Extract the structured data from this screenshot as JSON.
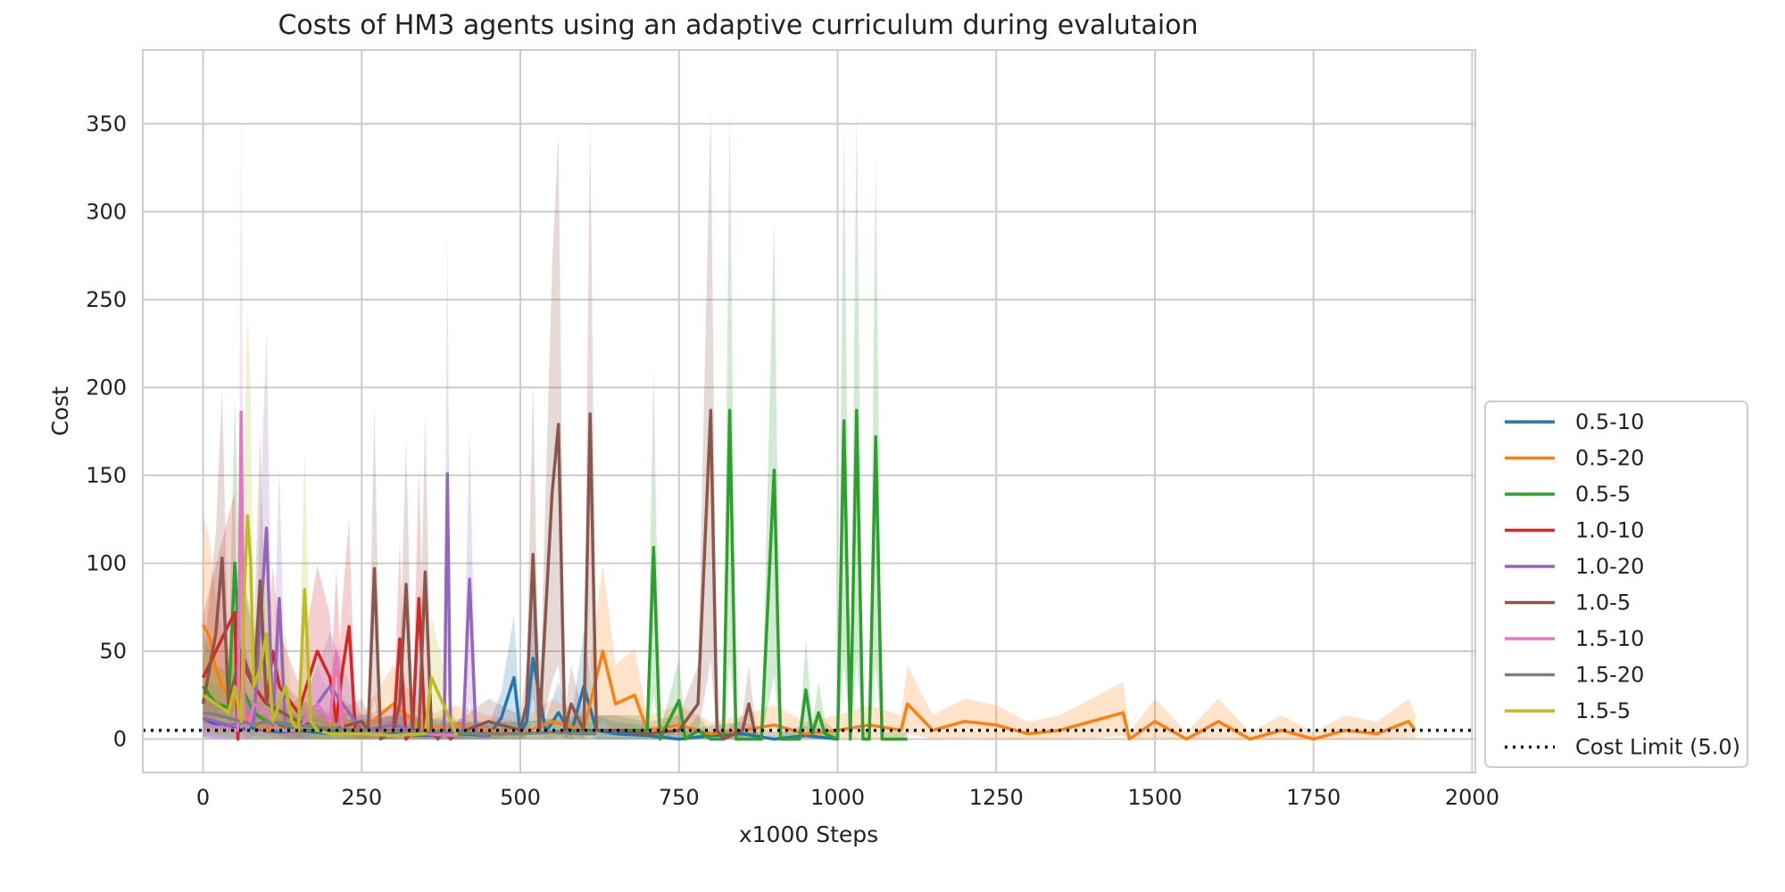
{
  "chart_data": {
    "type": "line",
    "title": "Costs of HM3 agents using an adaptive curriculum during evalutaion",
    "xlabel": "x1000 Steps",
    "ylabel": "Cost",
    "xlim": [
      -95,
      2005
    ],
    "ylim": [
      -19,
      392
    ],
    "xticks": [
      0,
      250,
      500,
      750,
      1000,
      1250,
      1500,
      1750,
      2000
    ],
    "yticks": [
      0,
      50,
      100,
      150,
      200,
      250,
      300,
      350
    ],
    "grid": true,
    "legend_position": "lower-right-outside",
    "reference_line": {
      "label": "Cost Limit (5.0)",
      "y": 5.0,
      "style": "dotted",
      "color": "#000000"
    },
    "series": [
      {
        "name": "0.5-10",
        "color": "#1f77b4",
        "x": [
          0,
          10,
          20,
          30,
          40,
          50,
          60,
          70,
          80,
          100,
          120,
          150,
          200,
          250,
          300,
          350,
          400,
          450,
          470,
          490,
          500,
          510,
          520,
          540,
          560,
          580,
          600,
          620,
          650,
          700,
          750,
          800,
          850,
          900,
          950,
          1000
        ],
        "y": [
          12,
          10,
          8,
          9,
          7,
          6,
          5,
          7,
          6,
          5,
          4,
          5,
          3,
          4,
          3,
          2,
          3,
          2,
          12,
          35,
          3,
          10,
          46,
          4,
          15,
          3,
          30,
          5,
          3,
          2,
          0,
          2,
          3,
          0,
          2,
          0
        ]
      },
      {
        "name": "0.5-20",
        "color": "#ff7f0e",
        "x": [
          0,
          10,
          20,
          30,
          40,
          50,
          60,
          80,
          100,
          150,
          200,
          210,
          220,
          250,
          300,
          350,
          400,
          450,
          500,
          550,
          600,
          630,
          650,
          680,
          700,
          750,
          800,
          850,
          900,
          950,
          1000,
          1050,
          1100,
          1110,
          1150,
          1200,
          1250,
          1300,
          1350,
          1400,
          1450,
          1460,
          1500,
          1550,
          1600,
          1650,
          1700,
          1750,
          1800,
          1850,
          1900,
          1910
        ],
        "y": [
          65,
          58,
          40,
          30,
          25,
          20,
          15,
          8,
          5,
          10,
          5,
          48,
          10,
          5,
          20,
          5,
          8,
          5,
          3,
          10,
          5,
          50,
          20,
          25,
          5,
          8,
          3,
          5,
          8,
          3,
          5,
          8,
          5,
          20,
          5,
          10,
          8,
          3,
          5,
          10,
          15,
          0,
          10,
          0,
          10,
          0,
          5,
          0,
          5,
          3,
          10,
          5
        ]
      },
      {
        "name": "0.5-5",
        "color": "#2ca02c",
        "x": [
          0,
          10,
          20,
          40,
          50,
          60,
          80,
          100,
          150,
          200,
          250,
          300,
          400,
          500,
          600,
          650,
          700,
          710,
          720,
          750,
          760,
          780,
          800,
          820,
          830,
          840,
          880,
          900,
          910,
          940,
          950,
          960,
          970,
          980,
          1000,
          1010,
          1020,
          1030,
          1040,
          1050,
          1060,
          1070,
          1110
        ],
        "y": [
          30,
          25,
          20,
          18,
          100,
          30,
          15,
          10,
          5,
          5,
          3,
          5,
          3,
          3,
          5,
          5,
          5,
          109,
          0,
          22,
          0,
          5,
          0,
          0,
          187,
          0,
          0,
          153,
          0,
          0,
          28,
          3,
          15,
          3,
          0,
          181,
          0,
          187,
          0,
          0,
          172,
          0,
          0
        ]
      },
      {
        "name": "1.0-10",
        "color": "#d62728",
        "x": [
          0,
          20,
          40,
          50,
          55,
          60,
          80,
          100,
          110,
          120,
          150,
          180,
          200,
          210,
          220,
          230,
          240,
          250,
          300,
          310,
          320,
          330,
          340,
          350
        ],
        "y": [
          35,
          50,
          65,
          72,
          0,
          45,
          30,
          20,
          50,
          30,
          15,
          50,
          35,
          10,
          40,
          64,
          5,
          3,
          5,
          57,
          0,
          5,
          80,
          3
        ]
      },
      {
        "name": "1.0-20",
        "color": "#9467bd",
        "x": [
          0,
          20,
          40,
          60,
          80,
          100,
          110,
          120,
          130,
          150,
          200,
          250,
          300,
          350,
          380,
          385,
          390,
          400,
          410,
          420,
          430,
          450
        ],
        "y": [
          12,
          10,
          8,
          9,
          10,
          120,
          8,
          80,
          5,
          5,
          30,
          5,
          8,
          3,
          5,
          151,
          3,
          3,
          5,
          91,
          3,
          2
        ]
      },
      {
        "name": "1.0-5",
        "color": "#8c564b",
        "x": [
          0,
          10,
          20,
          30,
          40,
          60,
          80,
          90,
          100,
          150,
          200,
          250,
          260,
          270,
          280,
          300,
          310,
          320,
          330,
          340,
          350,
          360,
          370,
          380,
          390,
          400,
          450,
          500,
          510,
          520,
          530,
          550,
          560,
          570,
          580,
          600,
          610,
          620,
          650,
          700,
          750,
          780,
          800,
          810,
          820,
          850,
          860,
          870
        ],
        "y": [
          20,
          40,
          60,
          103,
          20,
          50,
          30,
          90,
          20,
          10,
          5,
          10,
          5,
          97,
          0,
          5,
          20,
          88,
          5,
          5,
          95,
          5,
          0,
          5,
          0,
          3,
          10,
          5,
          20,
          105,
          5,
          140,
          179,
          5,
          20,
          5,
          185,
          5,
          5,
          3,
          5,
          20,
          187,
          5,
          0,
          5,
          20,
          3
        ]
      },
      {
        "name": "1.5-10",
        "color": "#e377c2",
        "x": [
          0,
          20,
          40,
          55,
          60,
          65,
          70,
          80,
          100,
          120,
          150,
          180,
          200,
          210,
          220,
          230,
          250,
          300,
          350,
          400
        ],
        "y": [
          8,
          7,
          6,
          5,
          186,
          10,
          5,
          20,
          15,
          5,
          5,
          20,
          10,
          50,
          5,
          3,
          3,
          5,
          3,
          2
        ]
      },
      {
        "name": "1.5-20",
        "color": "#7f7f7f",
        "x": [
          0,
          20,
          40,
          60,
          80,
          100,
          150,
          200,
          250,
          300,
          350,
          400,
          450,
          500,
          550,
          600,
          620
        ],
        "y": [
          15,
          14,
          12,
          10,
          8,
          10,
          8,
          6,
          5,
          5,
          4,
          4,
          3,
          3,
          4,
          3,
          3
        ]
      },
      {
        "name": "1.5-5",
        "color": "#bcbd22",
        "x": [
          0,
          20,
          40,
          50,
          60,
          65,
          70,
          75,
          80,
          90,
          100,
          110,
          120,
          130,
          140,
          150,
          160,
          170,
          180,
          200,
          250,
          300,
          350,
          360,
          400
        ],
        "y": [
          25,
          20,
          15,
          30,
          10,
          85,
          127,
          100,
          30,
          40,
          60,
          10,
          20,
          30,
          10,
          5,
          85,
          10,
          5,
          3,
          3,
          2,
          3,
          35,
          2
        ]
      }
    ]
  }
}
